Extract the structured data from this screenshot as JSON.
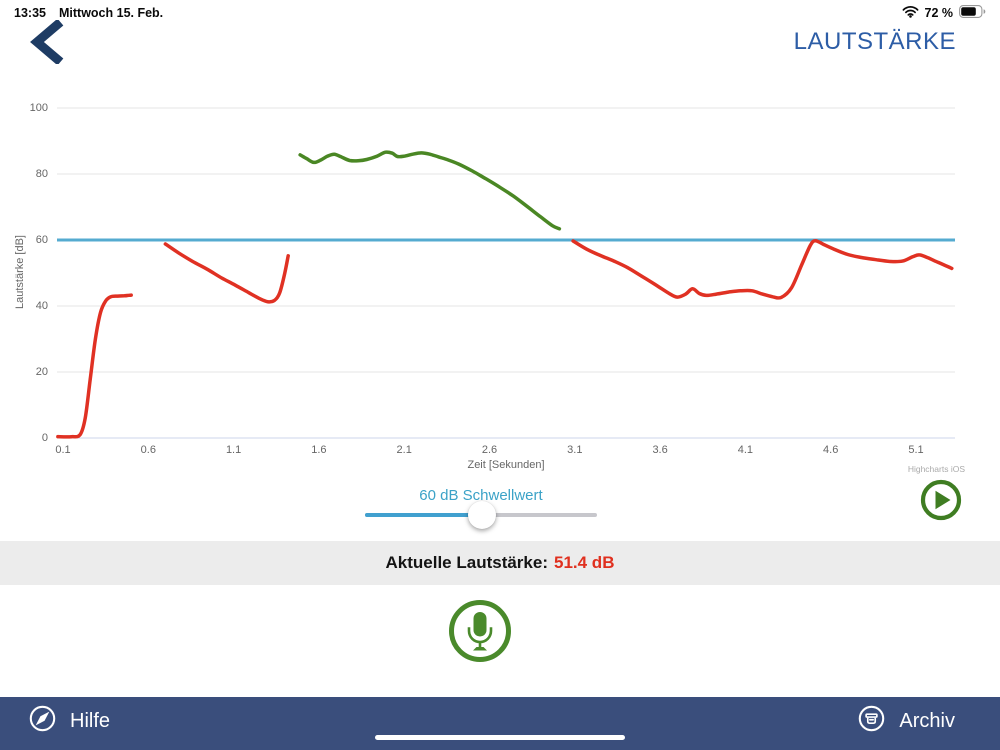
{
  "status_bar": {
    "time": "13:35",
    "date": "Mittwoch 15. Feb.",
    "battery": "72 %"
  },
  "header": {
    "title": "LAUTSTÄRKE",
    "back_icon": "chevron-left-icon"
  },
  "chart_data": {
    "type": "line",
    "title": "",
    "xlabel": "Zeit [Sekunden]",
    "ylabel": "Lautstärke [dB]",
    "x_ticks": [
      "0.1",
      "0.6",
      "1.1",
      "1.6",
      "2.1",
      "2.6",
      "3.1",
      "3.6",
      "4.1",
      "4.6",
      "5.1"
    ],
    "y_ticks": [
      "0",
      "20",
      "40",
      "60",
      "80",
      "100"
    ],
    "xlim": [
      0.07,
      5.33
    ],
    "ylim": [
      0,
      100
    ],
    "grid": "horizontal-only",
    "legend": "none",
    "credit": "Highcharts iOS",
    "threshold": {
      "value": 60,
      "color": "#55abd0"
    },
    "series_note": "single loudness trace; green where above 60 dB threshold, red where below",
    "segments": [
      {
        "color": "#e03123",
        "points": [
          [
            0.07,
            0.4
          ],
          [
            0.15,
            0.4
          ],
          [
            0.2,
            1.0
          ],
          [
            0.23,
            6
          ],
          [
            0.26,
            18
          ],
          [
            0.29,
            30
          ],
          [
            0.32,
            38
          ],
          [
            0.35,
            41.5
          ],
          [
            0.38,
            42.8
          ],
          [
            0.42,
            43.0
          ],
          [
            0.46,
            43.1
          ],
          [
            0.5,
            43.3
          ]
        ]
      },
      {
        "color": "#e03123",
        "points": [
          [
            0.7,
            58.8
          ],
          [
            0.78,
            56.0
          ],
          [
            0.86,
            53.5
          ],
          [
            0.95,
            51.0
          ],
          [
            1.03,
            48.5
          ],
          [
            1.11,
            46.3
          ],
          [
            1.19,
            44.0
          ],
          [
            1.25,
            42.3
          ],
          [
            1.3,
            41.3
          ],
          [
            1.34,
            41.7
          ],
          [
            1.37,
            44.0
          ],
          [
            1.4,
            50.0
          ],
          [
            1.42,
            55.2
          ]
        ]
      },
      {
        "color": "#4a8724",
        "points": [
          [
            1.49,
            85.8
          ],
          [
            1.53,
            84.6
          ],
          [
            1.57,
            83.5
          ],
          [
            1.61,
            84.2
          ],
          [
            1.65,
            85.4
          ],
          [
            1.69,
            86.0
          ],
          [
            1.73,
            85.2
          ],
          [
            1.78,
            84.1
          ],
          [
            1.83,
            84.0
          ],
          [
            1.88,
            84.4
          ],
          [
            1.94,
            85.4
          ],
          [
            1.99,
            86.6
          ],
          [
            2.03,
            86.3
          ],
          [
            2.06,
            85.3
          ],
          [
            2.1,
            85.4
          ],
          [
            2.15,
            86.0
          ],
          [
            2.2,
            86.4
          ],
          [
            2.25,
            86.0
          ],
          [
            2.3,
            85.2
          ],
          [
            2.36,
            84.2
          ],
          [
            2.42,
            83.0
          ],
          [
            2.5,
            80.9
          ],
          [
            2.58,
            78.5
          ],
          [
            2.66,
            76.0
          ],
          [
            2.74,
            73.3
          ],
          [
            2.82,
            70.2
          ],
          [
            2.9,
            67.0
          ],
          [
            2.97,
            64.3
          ],
          [
            3.01,
            63.4
          ]
        ]
      },
      {
        "color": "#e03123",
        "points": [
          [
            3.09,
            59.7
          ],
          [
            3.17,
            57.2
          ],
          [
            3.25,
            55.3
          ],
          [
            3.33,
            53.6
          ],
          [
            3.41,
            51.6
          ],
          [
            3.5,
            48.8
          ],
          [
            3.58,
            46.2
          ],
          [
            3.65,
            43.9
          ],
          [
            3.7,
            42.7
          ],
          [
            3.75,
            43.6
          ],
          [
            3.79,
            45.2
          ],
          [
            3.83,
            43.8
          ],
          [
            3.87,
            43.2
          ],
          [
            3.93,
            43.6
          ],
          [
            4.0,
            44.2
          ],
          [
            4.07,
            44.6
          ],
          [
            4.14,
            44.6
          ],
          [
            4.2,
            43.6
          ],
          [
            4.26,
            42.8
          ],
          [
            4.31,
            42.6
          ],
          [
            4.37,
            45.5
          ],
          [
            4.43,
            52.5
          ],
          [
            4.48,
            58.3
          ],
          [
            4.51,
            59.8
          ],
          [
            4.56,
            58.6
          ],
          [
            4.62,
            57.2
          ],
          [
            4.7,
            55.6
          ],
          [
            4.78,
            54.7
          ],
          [
            4.87,
            54.0
          ],
          [
            4.95,
            53.5
          ],
          [
            5.02,
            53.6
          ],
          [
            5.08,
            54.9
          ],
          [
            5.12,
            55.5
          ],
          [
            5.17,
            54.6
          ],
          [
            5.23,
            53.2
          ],
          [
            5.28,
            52.1
          ],
          [
            5.31,
            51.4
          ]
        ]
      }
    ]
  },
  "threshold_slider": {
    "label": "60 dB Schwellwert",
    "value_db": 60,
    "fraction": 0.5
  },
  "current_level": {
    "label": "Aktuelle Lautstärke:",
    "value": "51.4 dB"
  },
  "bottom_bar": {
    "help_label": "Hilfe",
    "archive_label": "Archiv",
    "help_icon": "compass-icon",
    "archive_icon": "archive-box-icon"
  },
  "icons": {
    "back": "chevron-left",
    "wifi": "wifi",
    "battery": "battery-72",
    "play": "play-circle",
    "mic": "microphone-circle"
  },
  "colors": {
    "title_blue": "#2d5da6",
    "nav_navy": "#3a4e7c",
    "back_chevron_navy": "#1e3c64",
    "line_red": "#e03123",
    "line_green": "#4a8724",
    "threshold_blue": "#55abd0",
    "slider_blue": "#41a0cf",
    "slider_label_blue": "#3ba2c7",
    "current_value_red": "#e0301f",
    "mic_green": "#4a8a2b",
    "play_green": "#3f7d22",
    "band_gray": "#ececec"
  }
}
